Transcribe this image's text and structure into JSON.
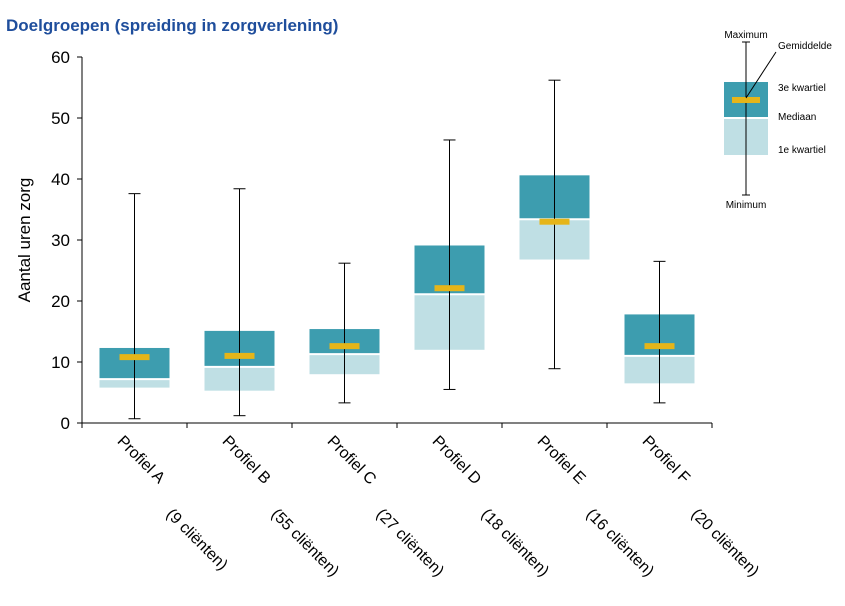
{
  "chart_data": {
    "type": "box",
    "title": "Doelgroepen (spreiding in zorgverlening)",
    "ylabel": "Aantal uren zorg",
    "ylim": [
      0,
      60
    ],
    "yticks": [
      0,
      10,
      20,
      30,
      40,
      50,
      60
    ],
    "grid": false,
    "categories": [
      {
        "name": "Profiel A",
        "clients": "(9 cliënten)"
      },
      {
        "name": "Profiel B",
        "clients": "(55 cliënten)"
      },
      {
        "name": "Profiel C",
        "clients": "(27 cliënten)"
      },
      {
        "name": "Profiel D",
        "clients": "(18 cliënten)"
      },
      {
        "name": "Profiel E",
        "clients": "(16 cliënten)"
      },
      {
        "name": "Profiel F",
        "clients": "(20 cliënten)"
      }
    ],
    "series": [
      {
        "min": 0.7,
        "q1": 5.8,
        "median": 7.2,
        "q3": 12.3,
        "max": 37.6,
        "mean": 10.8
      },
      {
        "min": 1.2,
        "q1": 5.3,
        "median": 9.2,
        "q3": 15.1,
        "max": 38.4,
        "mean": 11.0
      },
      {
        "min": 3.3,
        "q1": 8.0,
        "median": 11.3,
        "q3": 15.4,
        "max": 26.2,
        "mean": 12.6
      },
      {
        "min": 5.5,
        "q1": 12.0,
        "median": 21.1,
        "q3": 29.1,
        "max": 46.4,
        "mean": 22.1
      },
      {
        "min": 8.9,
        "q1": 26.8,
        "median": 33.4,
        "q3": 40.6,
        "max": 56.2,
        "mean": 33.0
      },
      {
        "min": 3.3,
        "q1": 6.5,
        "median": 11.0,
        "q3": 17.8,
        "max": 26.5,
        "mean": 12.6
      }
    ],
    "colors": {
      "upper_box": "#3d9daf",
      "lower_box": "#bfdfe4",
      "mean_marker": "#e5b519",
      "axis": "#000000",
      "title": "#1f4e9c"
    },
    "legend": {
      "position": "top-right",
      "maximum": "Maximum",
      "gemiddelde": "Gemiddelde",
      "kwartiel3": "3e kwartiel",
      "mediaan": "Mediaan",
      "kwartiel1": "1e kwartiel",
      "minimum": "Minimum"
    }
  }
}
